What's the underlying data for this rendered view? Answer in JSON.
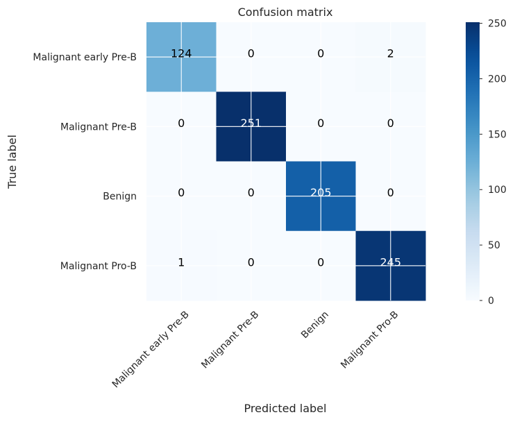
{
  "chart_data": {
    "type": "heatmap",
    "title": "Confusion matrix",
    "xlabel": "Predicted label",
    "ylabel": "True label",
    "x_categories": [
      "Malignant early Pre-B",
      "Malignant Pre-B",
      "Benign",
      "Malignant Pro-B"
    ],
    "y_categories": [
      "Malignant early Pre-B",
      "Malignant Pre-B",
      "Benign",
      "Malignant Pro-B"
    ],
    "matrix": [
      [
        124,
        0,
        0,
        2
      ],
      [
        0,
        251,
        0,
        0
      ],
      [
        0,
        0,
        205,
        0
      ],
      [
        1,
        0,
        0,
        245
      ]
    ],
    "colormap": "Blues",
    "colorbar": {
      "min": 0,
      "max": 251,
      "ticks": [
        0,
        50,
        100,
        150,
        200,
        250
      ]
    },
    "grid": true,
    "x_tick_rotation": 45
  }
}
